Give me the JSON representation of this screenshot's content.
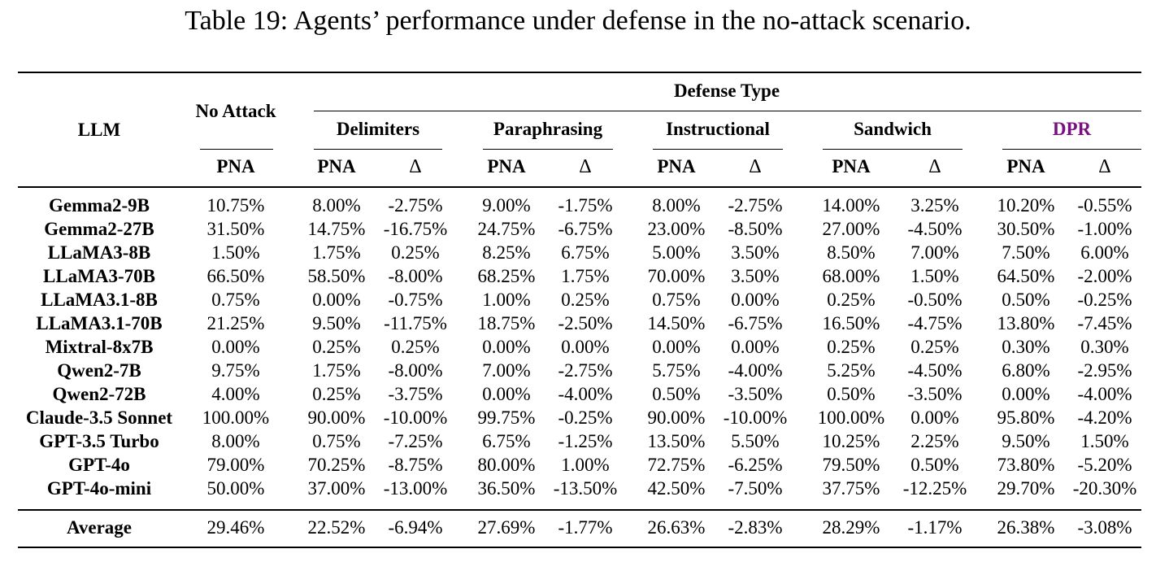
{
  "caption": "Table 19: Agents’ performance under defense in the no-attack scenario.",
  "header": {
    "llm": "LLM",
    "no_attack": "No Attack",
    "defense_type": "Defense Type",
    "groups": [
      "Delimiters",
      "Paraphrasing",
      "Instructional",
      "Sandwich",
      "DPR"
    ],
    "pna": "PNA",
    "delta": "∆"
  },
  "colors": {
    "dpr": "#7a0f82"
  },
  "rows": [
    {
      "llm": "Gemma2-9B",
      "values": [
        "10.75%",
        "8.00%",
        "-2.75%",
        "9.00%",
        "-1.75%",
        "8.00%",
        "-2.75%",
        "14.00%",
        "3.25%",
        "10.20%",
        "-0.55%"
      ]
    },
    {
      "llm": "Gemma2-27B",
      "values": [
        "31.50%",
        "14.75%",
        "-16.75%",
        "24.75%",
        "-6.75%",
        "23.00%",
        "-8.50%",
        "27.00%",
        "-4.50%",
        "30.50%",
        "-1.00%"
      ]
    },
    {
      "llm": "LLaMA3-8B",
      "values": [
        "1.50%",
        "1.75%",
        "0.25%",
        "8.25%",
        "6.75%",
        "5.00%",
        "3.50%",
        "8.50%",
        "7.00%",
        "7.50%",
        "6.00%"
      ]
    },
    {
      "llm": "LLaMA3-70B",
      "values": [
        "66.50%",
        "58.50%",
        "-8.00%",
        "68.25%",
        "1.75%",
        "70.00%",
        "3.50%",
        "68.00%",
        "1.50%",
        "64.50%",
        "-2.00%"
      ]
    },
    {
      "llm": "LLaMA3.1-8B",
      "values": [
        "0.75%",
        "0.00%",
        "-0.75%",
        "1.00%",
        "0.25%",
        "0.75%",
        "0.00%",
        "0.25%",
        "-0.50%",
        "0.50%",
        "-0.25%"
      ]
    },
    {
      "llm": "LLaMA3.1-70B",
      "values": [
        "21.25%",
        "9.50%",
        "-11.75%",
        "18.75%",
        "-2.50%",
        "14.50%",
        "-6.75%",
        "16.50%",
        "-4.75%",
        "13.80%",
        "-7.45%"
      ]
    },
    {
      "llm": "Mixtral-8x7B",
      "values": [
        "0.00%",
        "0.25%",
        "0.25%",
        "0.00%",
        "0.00%",
        "0.00%",
        "0.00%",
        "0.25%",
        "0.25%",
        "0.30%",
        "0.30%"
      ]
    },
    {
      "llm": "Qwen2-7B",
      "values": [
        "9.75%",
        "1.75%",
        "-8.00%",
        "7.00%",
        "-2.75%",
        "5.75%",
        "-4.00%",
        "5.25%",
        "-4.50%",
        "6.80%",
        "-2.95%"
      ]
    },
    {
      "llm": "Qwen2-72B",
      "values": [
        "4.00%",
        "0.25%",
        "-3.75%",
        "0.00%",
        "-4.00%",
        "0.50%",
        "-3.50%",
        "0.50%",
        "-3.50%",
        "0.00%",
        "-4.00%"
      ]
    },
    {
      "llm": "Claude-3.5 Sonnet",
      "values": [
        "100.00%",
        "90.00%",
        "-10.00%",
        "99.75%",
        "-0.25%",
        "90.00%",
        "-10.00%",
        "100.00%",
        "0.00%",
        "95.80%",
        "-4.20%"
      ]
    },
    {
      "llm": "GPT-3.5 Turbo",
      "values": [
        "8.00%",
        "0.75%",
        "-7.25%",
        "6.75%",
        "-1.25%",
        "13.50%",
        "5.50%",
        "10.25%",
        "2.25%",
        "9.50%",
        "1.50%"
      ]
    },
    {
      "llm": "GPT-4o",
      "values": [
        "79.00%",
        "70.25%",
        "-8.75%",
        "80.00%",
        "1.00%",
        "72.75%",
        "-6.25%",
        "79.50%",
        "0.50%",
        "73.80%",
        "-5.20%"
      ]
    },
    {
      "llm": "GPT-4o-mini",
      "values": [
        "50.00%",
        "37.00%",
        "-13.00%",
        "36.50%",
        "-13.50%",
        "42.50%",
        "-7.50%",
        "37.75%",
        "-12.25%",
        "29.70%",
        "-20.30%"
      ]
    }
  ],
  "average": {
    "llm": "Average",
    "values": [
      "29.46%",
      "22.52%",
      "-6.94%",
      "27.69%",
      "-1.77%",
      "26.63%",
      "-2.83%",
      "28.29%",
      "-1.17%",
      "26.38%",
      "-3.08%"
    ]
  }
}
